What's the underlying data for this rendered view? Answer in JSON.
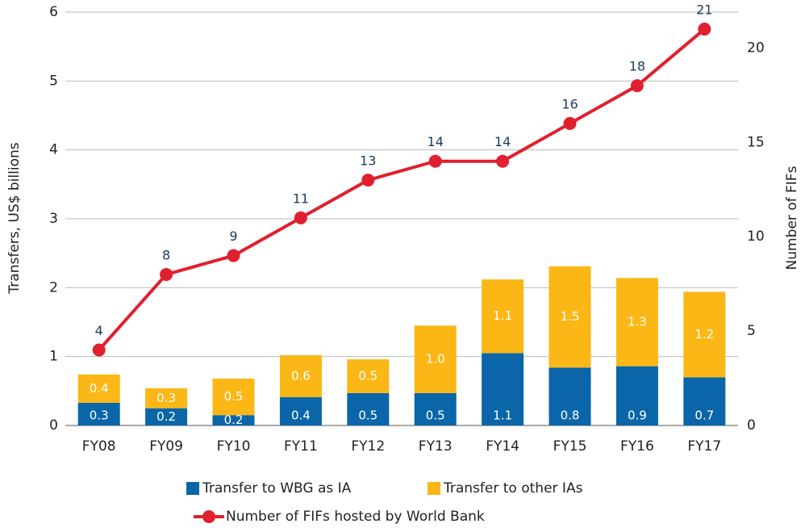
{
  "chart_data": {
    "type": "bar_line",
    "ylabel": "Transfers, US$ billions",
    "y2label": "Number of FIFs",
    "categories": [
      "FY08",
      "FY09",
      "FY10",
      "FY11",
      "FY12",
      "FY13",
      "FY14",
      "FY15",
      "FY16",
      "FY17"
    ],
    "series": [
      {
        "name": "Transfer to WBG as IA",
        "type": "bar",
        "color": "#0a66a8",
        "values": [
          0.33,
          0.25,
          0.15,
          0.41,
          0.47,
          0.47,
          1.05,
          0.84,
          0.86,
          0.7
        ],
        "value_labels": [
          "0.3",
          "0.2",
          "0.2",
          "0.4",
          "0.5",
          "0.5",
          "1.1",
          "0.8",
          "0.9",
          "0.7"
        ]
      },
      {
        "name": "Transfer to other IAs",
        "type": "bar",
        "color": "#fbb716",
        "values": [
          0.41,
          0.29,
          0.53,
          0.61,
          0.49,
          0.98,
          1.07,
          1.47,
          1.28,
          1.24
        ],
        "value_labels": [
          "0.4",
          "0.3",
          "0.5",
          "0.6",
          "0.5",
          "1.0",
          "1.1",
          "1.5",
          "1.3",
          "1.2"
        ]
      },
      {
        "name": "Number of FIFs hosted by World Bank",
        "type": "line",
        "axis": "y2",
        "color": "#e0202e",
        "values": [
          4,
          8,
          9,
          11,
          13,
          14,
          14,
          16,
          18,
          21
        ]
      }
    ],
    "ylim": [
      0,
      6
    ],
    "yticks": [
      0,
      1,
      2,
      3,
      4,
      5,
      6
    ],
    "y2lim": [
      0,
      21.9
    ],
    "y2ticks": [
      0,
      5,
      10,
      15,
      20
    ],
    "grid": true
  }
}
